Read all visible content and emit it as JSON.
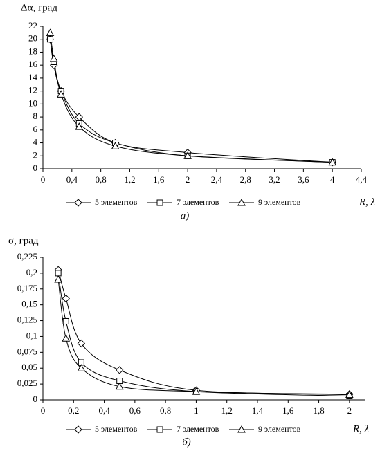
{
  "chart_data": [
    {
      "type": "line",
      "y_label": "Δα, град",
      "x_label": "R, λ",
      "caption": "а)",
      "legend": "bottom",
      "grid": false,
      "x": [
        0.1,
        0.15,
        0.25,
        0.5,
        1,
        2,
        4
      ],
      "series": [
        {
          "name": "5 элементов",
          "color": "#000000",
          "marker": "diamond",
          "values": [
            20,
            16,
            12,
            8,
            4,
            2.5,
            1
          ]
        },
        {
          "name": "7 элементов",
          "color": "#000000",
          "marker": "square",
          "values": [
            20,
            16.5,
            12,
            7,
            4,
            2,
            1
          ]
        },
        {
          "name": "9 элементов",
          "color": "#000000",
          "marker": "triangle",
          "values": [
            21,
            17,
            11.5,
            6.5,
            3.5,
            2,
            1
          ]
        }
      ],
      "xlim": [
        0,
        4.4
      ],
      "ylim": [
        0,
        22
      ],
      "xticks": [
        0,
        {
          "value": 0.4,
          "label": "0,4"
        },
        {
          "value": 0.8,
          "label": "0,8"
        },
        {
          "value": 1.2,
          "label": "1,2"
        },
        {
          "value": 1.6,
          "label": "1,6"
        },
        2,
        {
          "value": 2.4,
          "label": "2,4"
        },
        {
          "value": 2.8,
          "label": "2,8"
        },
        {
          "value": 3.2,
          "label": "3,2"
        },
        {
          "value": 3.6,
          "label": "3,6"
        },
        4,
        {
          "value": 4.4,
          "label": "4,4"
        }
      ],
      "yticks": [
        0,
        2,
        4,
        6,
        8,
        10,
        12,
        14,
        16,
        18,
        20,
        22
      ]
    },
    {
      "type": "line",
      "y_label": "σ, град",
      "x_label": "R, λ",
      "caption": "б)",
      "legend": "bottom",
      "grid": false,
      "x": [
        0.1,
        0.15,
        0.25,
        0.5,
        1,
        2
      ],
      "series": [
        {
          "name": "5 элементов",
          "color": "#000000",
          "marker": "diamond",
          "values": [
            0.205,
            0.16,
            0.089,
            0.047,
            0.015,
            0.009
          ]
        },
        {
          "name": "7 элементов",
          "color": "#000000",
          "marker": "square",
          "values": [
            0.2,
            0.124,
            0.059,
            0.03,
            0.013,
            0.006
          ]
        },
        {
          "name": "9 элементов",
          "color": "#000000",
          "marker": "triangle",
          "values": [
            0.19,
            0.097,
            0.05,
            0.021,
            0.013,
            0.008
          ]
        }
      ],
      "xlim": [
        0,
        2.1
      ],
      "ylim": [
        0,
        0.225
      ],
      "xticks": [
        0,
        {
          "value": 0.2,
          "label": "0,2"
        },
        {
          "value": 0.4,
          "label": "0,4"
        },
        {
          "value": 0.6,
          "label": "0,6"
        },
        {
          "value": 0.8,
          "label": "0,8"
        },
        1,
        {
          "value": 1.2,
          "label": "1,2"
        },
        {
          "value": 1.4,
          "label": "1,4"
        },
        {
          "value": 1.6,
          "label": "1,6"
        },
        {
          "value": 1.8,
          "label": "1,8"
        },
        2
      ],
      "yticks": [
        0,
        {
          "value": 0.025,
          "label": "0,025"
        },
        {
          "value": 0.05,
          "label": "0,05"
        },
        {
          "value": 0.075,
          "label": "0,075"
        },
        {
          "value": 0.1,
          "label": "0,1"
        },
        {
          "value": 0.125,
          "label": "0,125"
        },
        {
          "value": 0.15,
          "label": "0,15"
        },
        {
          "value": 0.175,
          "label": "0,175"
        },
        {
          "value": 0.2,
          "label": "0,2"
        },
        {
          "value": 0.225,
          "label": "0,225"
        }
      ]
    }
  ]
}
